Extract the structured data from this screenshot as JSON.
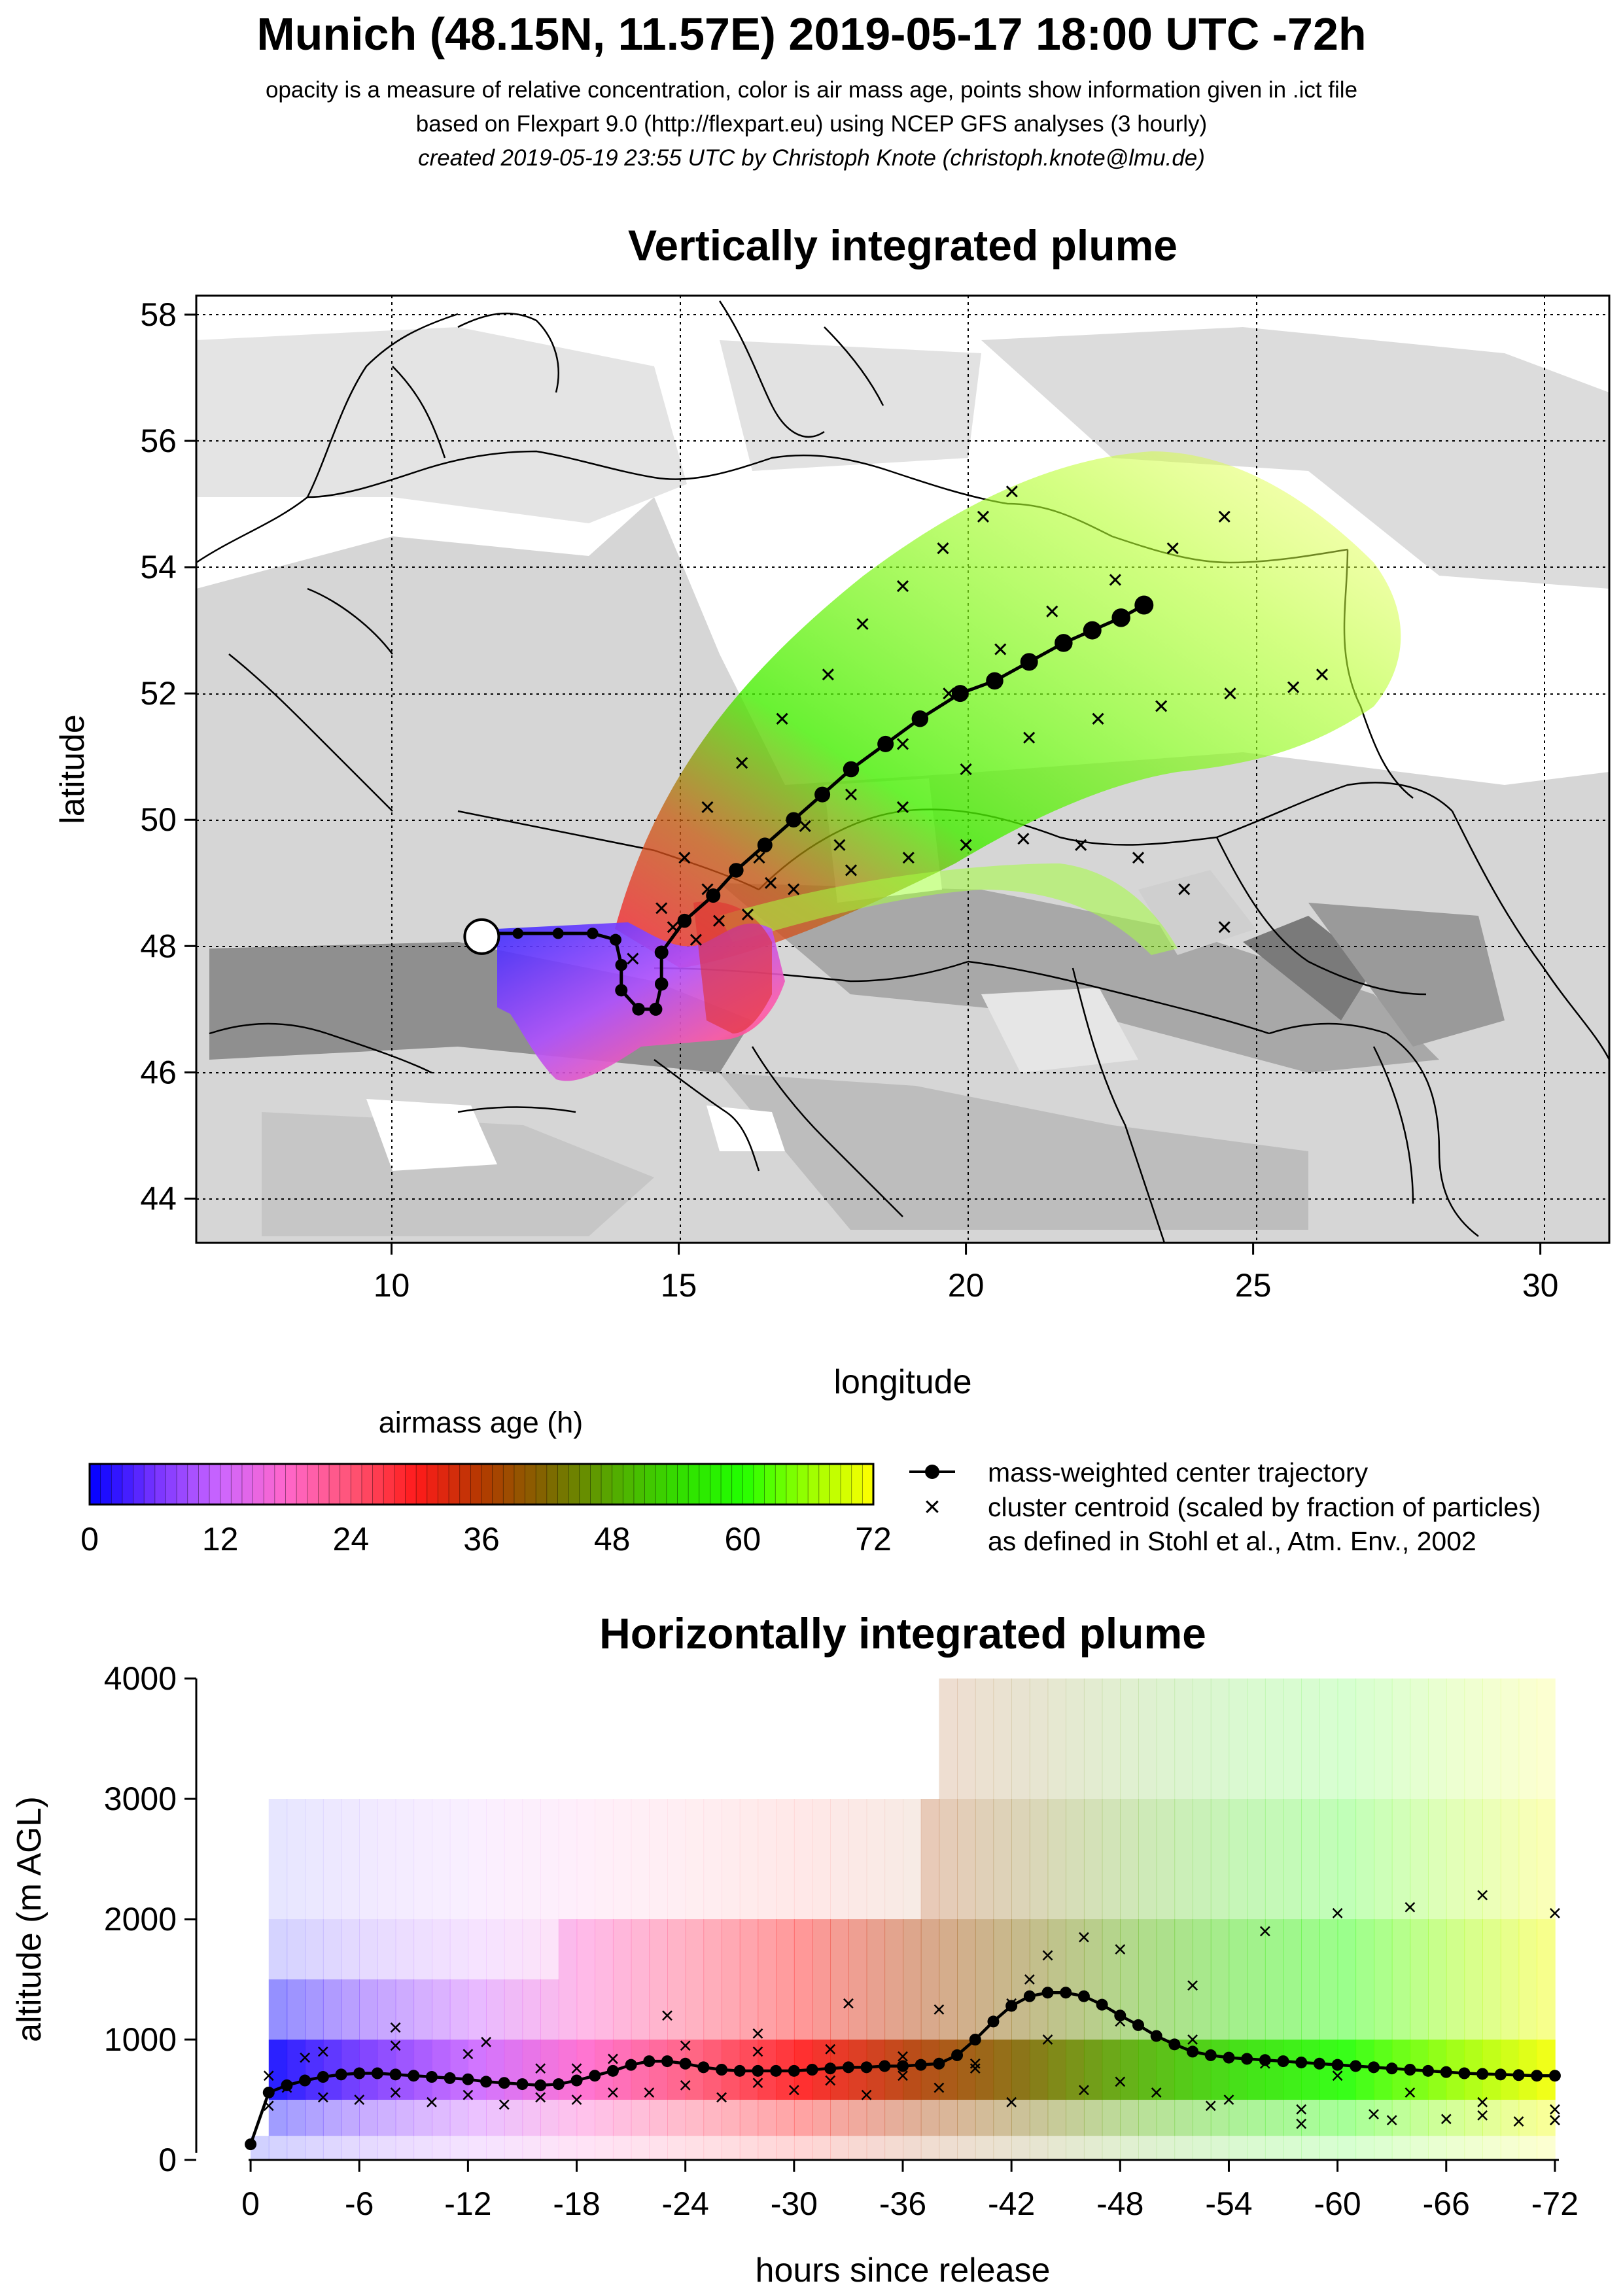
{
  "header": {
    "title": "Munich (48.15N, 11.57E) 2019-05-17 18:00 UTC -72h",
    "line1": "opacity is a measure of relative concentration, color is air mass age, points show information given in .ict file",
    "line2": "based on Flexpart 9.0 (http://flexpart.eu) using NCEP GFS analyses (3 hourly)",
    "line3": "created 2019-05-19 23:55 UTC by Christoph Knote (christoph.knote@lmu.de)"
  },
  "colors": {
    "age_scale": [
      "#0000ff",
      "#7733ff",
      "#cc66ff",
      "#ff66cc",
      "#ff5577",
      "#ff1a1a",
      "#b33a00",
      "#806600",
      "#55aa00",
      "#33dd00",
      "#22ff00",
      "#99ff00",
      "#ffff00"
    ],
    "terrain": "#d9d9d9",
    "trajectory": "#000000"
  },
  "chart_data": [
    {
      "type": "scatter",
      "title": "Vertically integrated plume",
      "xlabel": "longitude",
      "ylabel": "latitude",
      "xlim": [
        6.6,
        31.2
      ],
      "ylim": [
        43.3,
        58.3
      ],
      "xticks": [
        "10",
        "15",
        "20",
        "25",
        "30"
      ],
      "yticks": [
        "44",
        "46",
        "48",
        "50",
        "52",
        "54",
        "56",
        "58"
      ],
      "grid": true,
      "release_point": {
        "lon": 11.57,
        "lat": 48.15,
        "label": "Munich"
      },
      "series": [
        {
          "name": "mass-weighted center trajectory",
          "marker": "filled-circle-line",
          "points": [
            [
              11.6,
              48.2
            ],
            [
              12.2,
              48.2
            ],
            [
              12.9,
              48.2
            ],
            [
              13.5,
              48.2
            ],
            [
              13.9,
              48.1
            ],
            [
              14.0,
              47.7
            ],
            [
              14.0,
              47.3
            ],
            [
              14.3,
              47.0
            ],
            [
              14.6,
              47.0
            ],
            [
              14.7,
              47.4
            ],
            [
              14.7,
              47.9
            ],
            [
              15.1,
              48.4
            ],
            [
              15.6,
              48.8
            ],
            [
              16.0,
              49.2
            ],
            [
              16.5,
              49.6
            ],
            [
              17.0,
              50.0
            ],
            [
              17.5,
              50.4
            ],
            [
              18.0,
              50.8
            ],
            [
              18.6,
              51.2
            ],
            [
              19.2,
              51.6
            ],
            [
              19.9,
              52.0
            ],
            [
              20.5,
              52.2
            ],
            [
              21.1,
              52.5
            ],
            [
              21.7,
              52.8
            ],
            [
              22.2,
              53.0
            ],
            [
              22.7,
              53.2
            ],
            [
              23.1,
              53.4
            ]
          ]
        },
        {
          "name": "cluster centroid (scaled by fraction of particles)",
          "marker": "x",
          "tracks": [
            [
              [
                14.2,
                47.8
              ],
              [
                14.7,
                48.6
              ],
              [
                15.1,
                49.4
              ],
              [
                15.5,
                50.2
              ],
              [
                16.1,
                50.9
              ],
              [
                16.8,
                51.6
              ],
              [
                17.6,
                52.3
              ],
              [
                18.2,
                53.1
              ],
              [
                18.9,
                53.7
              ],
              [
                19.6,
                54.3
              ],
              [
                20.3,
                54.8
              ],
              [
                20.8,
                55.2
              ]
            ],
            [
              [
                14.9,
                48.3
              ],
              [
                15.5,
                48.9
              ],
              [
                16.4,
                49.4
              ],
              [
                17.2,
                49.9
              ],
              [
                18.0,
                50.4
              ],
              [
                18.9,
                51.2
              ],
              [
                19.7,
                52.0
              ],
              [
                20.6,
                52.7
              ],
              [
                21.5,
                53.3
              ],
              [
                22.6,
                53.8
              ],
              [
                23.6,
                54.3
              ],
              [
                24.5,
                54.8
              ]
            ],
            [
              [
                15.3,
                48.1
              ],
              [
                16.2,
                48.5
              ],
              [
                17.0,
                48.9
              ],
              [
                18.0,
                49.2
              ],
              [
                19.0,
                49.4
              ],
              [
                20.0,
                49.6
              ],
              [
                21.0,
                49.7
              ],
              [
                22.0,
                49.6
              ],
              [
                23.0,
                49.4
              ],
              [
                23.8,
                48.9
              ],
              [
                24.5,
                48.3
              ]
            ],
            [
              [
                15.7,
                48.4
              ],
              [
                16.6,
                49.0
              ],
              [
                17.8,
                49.6
              ],
              [
                18.9,
                50.2
              ],
              [
                20.0,
                50.8
              ],
              [
                21.1,
                51.3
              ],
              [
                22.3,
                51.6
              ],
              [
                23.4,
                51.8
              ],
              [
                24.6,
                52.0
              ],
              [
                25.7,
                52.1
              ],
              [
                26.2,
                52.3
              ]
            ]
          ]
        }
      ],
      "colorbar": {
        "label": "airmass age (h)",
        "ticks": [
          "0",
          "12",
          "24",
          "36",
          "48",
          "60",
          "72"
        ],
        "range": [
          0,
          72
        ]
      },
      "legend": {
        "items": [
          "mass-weighted center trajectory",
          "cluster centroid (scaled by fraction of particles)",
          "as defined in Stohl et al., Atm. Env., 2002"
        ]
      }
    },
    {
      "type": "line",
      "title": "Horizontally integrated plume",
      "xlabel": "hours since release",
      "ylabel": "altitude (m AGL)",
      "xlim": [
        3,
        -75
      ],
      "ylim": [
        0,
        4000
      ],
      "xticks": [
        "0",
        "-6",
        "-12",
        "-18",
        "-24",
        "-30",
        "-36",
        "-42",
        "-48",
        "-54",
        "-60",
        "-66",
        "-72"
      ],
      "yticks": [
        "0",
        "1000",
        "2000",
        "3000",
        "4000"
      ],
      "series": [
        {
          "name": "mass-weighted center trajectory",
          "x": [
            0,
            -1,
            -2,
            -3,
            -4,
            -5,
            -6,
            -7,
            -8,
            -9,
            -10,
            -11,
            -12,
            -13,
            -14,
            -15,
            -16,
            -17,
            -18,
            -19,
            -20,
            -21,
            -22,
            -23,
            -24,
            -25,
            -26,
            -27,
            -28,
            -29,
            -30,
            -31,
            -32,
            -33,
            -34,
            -35,
            -36,
            -37,
            -38,
            -39,
            -40,
            -41,
            -42,
            -43,
            -44,
            -45,
            -46,
            -47,
            -48,
            -49,
            -50,
            -51,
            -52,
            -53,
            -54,
            -55,
            -56,
            -57,
            -58,
            -59,
            -60,
            -61,
            -62,
            -63,
            -64,
            -65,
            -66,
            -67,
            -68,
            -69,
            -70,
            -71,
            -72
          ],
          "values": [
            130,
            560,
            620,
            660,
            690,
            710,
            720,
            720,
            710,
            700,
            690,
            680,
            670,
            650,
            640,
            630,
            620,
            630,
            660,
            700,
            740,
            790,
            820,
            820,
            800,
            770,
            750,
            740,
            740,
            740,
            740,
            750,
            760,
            770,
            770,
            780,
            780,
            790,
            800,
            870,
            1000,
            1150,
            1280,
            1360,
            1390,
            1390,
            1360,
            1290,
            1200,
            1120,
            1030,
            960,
            900,
            870,
            850,
            840,
            830,
            820,
            810,
            800,
            790,
            780,
            770,
            760,
            750,
            740,
            730,
            720,
            715,
            710,
            705,
            700,
            700
          ]
        },
        {
          "name": "cluster centroid (scaled by fraction of particles)",
          "marker": "x",
          "tracks": [
            {
              "x": [
                -1,
                -4,
                -8,
                -12,
                -16,
                -20,
                -24,
                -28,
                -32,
                -36,
                -40,
                -42,
                -44,
                -46,
                -48,
                -52,
                -56,
                -60,
                -64,
                -68,
                -72
              ],
              "values": [
                700,
                900,
                950,
                880,
                760,
                840,
                950,
                900,
                920,
                860,
                800,
                1300,
                1700,
                1850,
                1750,
                1450,
                1900,
                2050,
                2100,
                2200,
                2050
              ]
            },
            {
              "x": [
                -1,
                -4,
                -8,
                -12,
                -16,
                -20,
                -24,
                -28,
                -32,
                -36,
                -40,
                -44,
                -48,
                -52,
                -56,
                -60,
                -64,
                -68,
                -72
              ],
              "values": [
                450,
                520,
                560,
                540,
                520,
                560,
                620,
                640,
                660,
                700,
                760,
                1000,
                1150,
                1000,
                800,
                700,
                560,
                480,
                420
              ]
            },
            {
              "x": [
                -2,
                -6,
                -10,
                -14,
                -18,
                -22,
                -26,
                -30,
                -34,
                -38,
                -42,
                -46,
                -50,
                -54,
                -58,
                -62,
                -66,
                -70,
                -72
              ],
              "values": [
                600,
                500,
                480,
                460,
                500,
                560,
                520,
                580,
                540,
                600,
                480,
                580,
                560,
                500,
                420,
                380,
                340,
                320,
                330
              ]
            },
            {
              "x": [
                -3,
                -8,
                -13,
                -18,
                -23,
                -28,
                -33,
                -38,
                -43,
                -48,
                -53,
                -58,
                -63,
                -68,
                -72
              ],
              "values": [
                850,
                1100,
                980,
                760,
                1200,
                1050,
                1300,
                1250,
                1500,
                650,
                450,
                300,
                330,
                370,
                330
              ]
            }
          ]
        }
      ]
    }
  ]
}
